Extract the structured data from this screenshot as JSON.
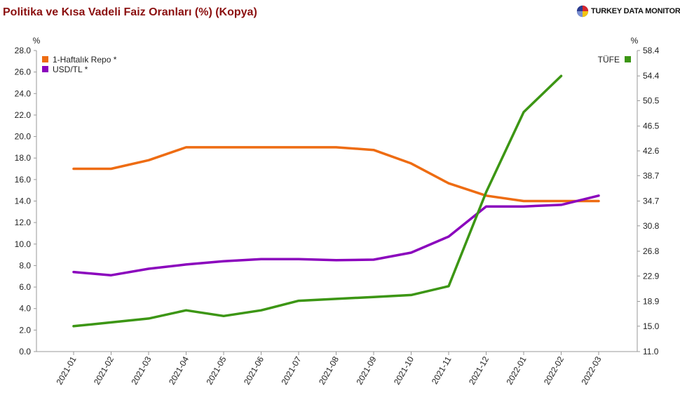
{
  "header": {
    "title": "Politika ve Kısa Vadeli Faiz Oranları (%) (Kopya)",
    "brand": "TURKEY DATA MONITOR"
  },
  "chart_data": {
    "type": "line",
    "x": [
      "2021-01",
      "2021-02",
      "2021-03",
      "2021-04",
      "2021-05",
      "2021-06",
      "2021-07",
      "2021-08",
      "2021-09",
      "2021-10",
      "2021-11",
      "2021-12",
      "2022-01",
      "2022-02",
      "2022-03"
    ],
    "left_axis": {
      "unit": "%",
      "min": 0,
      "max": 28,
      "ticks": [
        "0.0",
        "2.0",
        "4.0",
        "6.0",
        "8.0",
        "10.0",
        "12.0",
        "14.0",
        "16.0",
        "18.0",
        "20.0",
        "22.0",
        "24.0",
        "26.0",
        "28.0"
      ]
    },
    "right_axis": {
      "unit": "%",
      "min": 11.0,
      "max": 58.4,
      "ticks": [
        "11.0",
        "15.0",
        "18.9",
        "22.9",
        "26.8",
        "30.8",
        "34.7",
        "38.7",
        "42.6",
        "46.5",
        "50.5",
        "54.4",
        "58.4"
      ]
    },
    "series": [
      {
        "name": "1-Haftalık Repo *",
        "axis": "left",
        "color": "#ee6c12",
        "legend": "top-left",
        "values": [
          17.0,
          17.0,
          17.8,
          19.0,
          19.0,
          19.0,
          19.0,
          19.0,
          18.75,
          17.5,
          15.65,
          14.5,
          14.0,
          14.0,
          14.0
        ]
      },
      {
        "name": "USD/TL *",
        "axis": "left",
        "color": "#8b05bd",
        "legend": "top-left",
        "values": [
          7.4,
          7.1,
          7.7,
          8.1,
          8.4,
          8.6,
          8.6,
          8.5,
          8.55,
          9.2,
          10.7,
          13.5,
          13.5,
          13.65,
          14.5
        ]
      },
      {
        "name": "TÜFE",
        "axis": "right",
        "color": "#3c9614",
        "legend": "top-right",
        "values": [
          15.0,
          15.6,
          16.2,
          17.5,
          16.6,
          17.5,
          19.0,
          19.3,
          19.6,
          19.9,
          21.3,
          36.1,
          48.7,
          54.4,
          null
        ]
      }
    ],
    "grid": false
  }
}
